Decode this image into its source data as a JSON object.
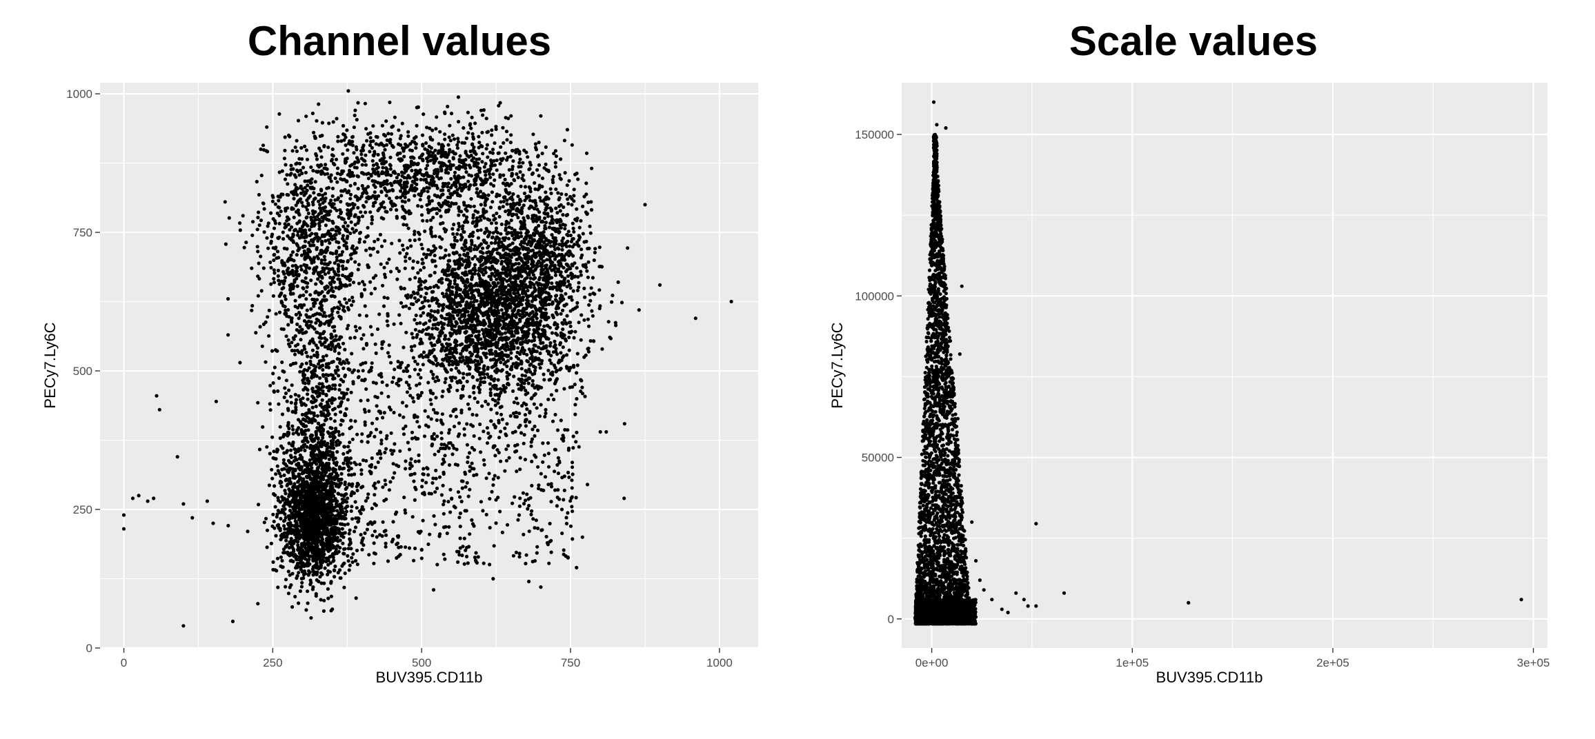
{
  "chart_data": [
    {
      "type": "scatter",
      "title": "Channel values",
      "xlabel": "BUV395.CD11b",
      "ylabel": "PECy7.Ly6C",
      "xlim": [
        -40,
        1065
      ],
      "ylim": [
        0,
        1020
      ],
      "xticks": [
        0,
        250,
        500,
        750,
        1000
      ],
      "xtick_labels": [
        "0",
        "250",
        "500",
        "750",
        "1000"
      ],
      "yticks": [
        0,
        250,
        500,
        750,
        1000
      ],
      "ytick_labels": [
        "0",
        "250",
        "500",
        "750",
        "1000"
      ],
      "grid": true,
      "point_color": "#000000",
      "populations": [
        {
          "kind": "gaussian",
          "cx": 320,
          "cy": 235,
          "sx": 28,
          "sy": 55,
          "n": 1400
        },
        {
          "kind": "gaussian",
          "cx": 320,
          "cy": 300,
          "sx": 35,
          "sy": 90,
          "n": 550
        },
        {
          "kind": "gaussian",
          "cx": 330,
          "cy": 470,
          "sx": 32,
          "sy": 70,
          "n": 300
        },
        {
          "kind": "gaussian",
          "cx": 320,
          "cy": 720,
          "sx": 45,
          "sy": 95,
          "n": 900
        },
        {
          "kind": "gaussian",
          "cx": 520,
          "cy": 860,
          "sx": 100,
          "sy": 45,
          "n": 950
        },
        {
          "kind": "gaussian",
          "cx": 620,
          "cy": 615,
          "sx": 70,
          "sy": 80,
          "n": 2200
        },
        {
          "kind": "gaussian",
          "cx": 700,
          "cy": 720,
          "sx": 40,
          "sy": 60,
          "n": 500
        },
        {
          "kind": "uniform",
          "x": [
            380,
            760
          ],
          "y": [
            150,
            560
          ],
          "n": 650
        },
        {
          "kind": "uniform",
          "x": [
            250,
            780
          ],
          "y": [
            250,
            900
          ],
          "n": 450
        }
      ],
      "outliers": [
        [
          0,
          240
        ],
        [
          0,
          215
        ],
        [
          15,
          270
        ],
        [
          25,
          275
        ],
        [
          40,
          265
        ],
        [
          50,
          270
        ],
        [
          55,
          455
        ],
        [
          60,
          430
        ],
        [
          90,
          345
        ],
        [
          100,
          40
        ],
        [
          100,
          260
        ],
        [
          115,
          235
        ],
        [
          140,
          265
        ],
        [
          150,
          225
        ],
        [
          155,
          445
        ],
        [
          170,
          805
        ],
        [
          175,
          630
        ],
        [
          175,
          565
        ],
        [
          195,
          515
        ],
        [
          200,
          780
        ],
        [
          225,
          80
        ],
        [
          240,
          940
        ],
        [
          230,
          900
        ],
        [
          840,
          270
        ],
        [
          830,
          660
        ],
        [
          865,
          610
        ],
        [
          875,
          800
        ],
        [
          900,
          655
        ],
        [
          960,
          595
        ],
        [
          1020,
          625
        ],
        [
          800,
          390
        ],
        [
          810,
          390
        ],
        [
          770,
          200
        ],
        [
          760,
          145
        ],
        [
          680,
          120
        ],
        [
          700,
          110
        ],
        [
          620,
          125
        ],
        [
          520,
          105
        ],
        [
          350,
          70
        ],
        [
          390,
          90
        ],
        [
          700,
          960
        ],
        [
          650,
          960
        ],
        [
          600,
          970
        ]
      ]
    },
    {
      "type": "scatter",
      "title": "Scale values",
      "xlabel": "BUV395.CD11b",
      "ylabel": "PECy7.Ly6C",
      "xlim": [
        -15000,
        307000
      ],
      "ylim": [
        -9000,
        166000
      ],
      "xticks": [
        0,
        100000,
        200000,
        300000
      ],
      "xtick_labels": [
        "0e+00",
        "1e+05",
        "2e+05",
        "3e+05"
      ],
      "yticks": [
        0,
        50000,
        100000,
        150000
      ],
      "ytick_labels": [
        "0",
        "50000",
        "100000",
        "150000"
      ],
      "grid": true,
      "point_color": "#000000",
      "populations": [
        {
          "kind": "baseline",
          "x": [
            -8000,
            22000
          ],
          "y": [
            -1500,
            6000
          ],
          "n": 1800
        },
        {
          "kind": "spike",
          "cx": 1500,
          "ymax": 150000,
          "halfwidth_at_base": 14000,
          "n": 3200
        }
      ],
      "outliers": [
        [
          1000,
          160000
        ],
        [
          2500,
          153000
        ],
        [
          7000,
          152000
        ],
        [
          2000,
          147000
        ],
        [
          15000,
          103000
        ],
        [
          14000,
          82000
        ],
        [
          13000,
          62000
        ],
        [
          20000,
          30000
        ],
        [
          22000,
          18000
        ],
        [
          24000,
          12000
        ],
        [
          26000,
          9000
        ],
        [
          30000,
          6000
        ],
        [
          35000,
          3000
        ],
        [
          38000,
          2000
        ],
        [
          42000,
          8000
        ],
        [
          46000,
          6000
        ],
        [
          48000,
          4000
        ],
        [
          52000,
          29500
        ],
        [
          52000,
          4000
        ],
        [
          66000,
          8000
        ],
        [
          128000,
          5000
        ],
        [
          294000,
          6000
        ]
      ]
    }
  ]
}
